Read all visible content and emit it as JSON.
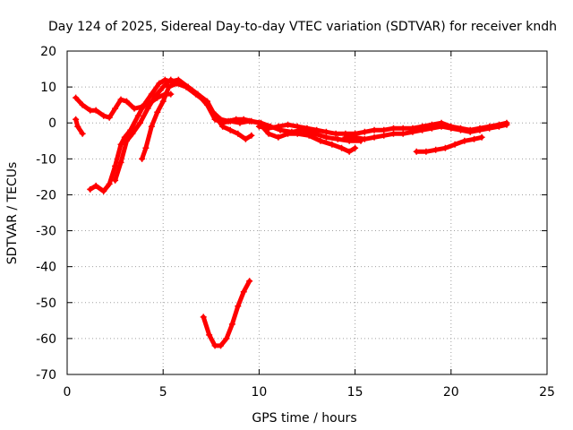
{
  "chart_data": {
    "type": "line",
    "title": "Day 124 of 2025, Sidereal Day-to-day VTEC variation (SDTVAR) for receiver kndh",
    "xlabel": "GPS time / hours",
    "ylabel": "SDTVAR / TECUs",
    "xlim": [
      0,
      25
    ],
    "ylim": [
      -70,
      20
    ],
    "xticks": [
      0,
      5,
      10,
      15,
      20,
      25
    ],
    "yticks": [
      -70,
      -60,
      -50,
      -40,
      -30,
      -20,
      -10,
      0,
      10,
      20
    ],
    "grid": true,
    "legend": "none",
    "color": "#ff0000",
    "series": [
      {
        "name": "arc-1",
        "x": [
          0.45,
          0.55,
          0.8
        ],
        "y": [
          1,
          -1,
          -3
        ]
      },
      {
        "name": "arc-2",
        "x": [
          0.45,
          0.8,
          1.2,
          1.5,
          1.9,
          2.2,
          2.5,
          2.8,
          3.1,
          3.5,
          3.9,
          4.3,
          4.7,
          5.1,
          5.4
        ],
        "y": [
          7,
          5,
          3.5,
          3.5,
          2,
          1.5,
          4,
          6.5,
          6,
          4,
          4.5,
          5.5,
          7,
          8,
          8
        ]
      },
      {
        "name": "arc-3",
        "x": [
          1.2,
          1.5,
          1.9,
          2.2,
          2.5,
          2.8,
          3.0,
          3.3,
          3.7,
          4.0,
          4.4,
          4.8,
          5.1,
          5.4,
          5.8,
          6.3,
          6.8,
          7.3,
          7.7,
          8.1,
          8.5,
          8.9,
          9.3,
          9.6
        ],
        "y": [
          -18.5,
          -17.5,
          -19,
          -17,
          -12,
          -6,
          -4,
          -2,
          2,
          5,
          8,
          11,
          12,
          11.5,
          12,
          10,
          8,
          6,
          2,
          -1,
          -2,
          -3,
          -4.5,
          -3.5
        ]
      },
      {
        "name": "arc-4",
        "x": [
          2.5,
          2.8,
          3.1,
          3.4,
          3.8,
          4.2,
          4.6,
          5.0,
          5.4,
          5.8,
          6.3,
          6.8,
          7.3,
          7.7,
          8.1,
          8.5,
          9.0,
          9.5,
          10.0,
          10.5,
          11.0,
          11.5,
          12.0,
          12.6,
          13.2,
          13.8,
          14.3,
          14.7,
          15.0
        ],
        "y": [
          -16,
          -11,
          -5,
          -3,
          0,
          4,
          7.5,
          10,
          12,
          11,
          10,
          8,
          5,
          1,
          0,
          0.5,
          0,
          0.5,
          0,
          -3,
          -4,
          -3,
          -3,
          -3.5,
          -5,
          -6,
          -7,
          -8,
          -7
        ]
      },
      {
        "name": "arc-5",
        "x": [
          3.9,
          4.1,
          4.4,
          4.7,
          5.0,
          5.3,
          5.7,
          6.2,
          6.7,
          7.2,
          7.6,
          8.0,
          8.4,
          8.8,
          9.2,
          9.6,
          10.1,
          10.6,
          11.1,
          11.7,
          12.3,
          12.9,
          13.5,
          14.1,
          14.7,
          15.3
        ],
        "y": [
          -10,
          -7,
          -1,
          3,
          6,
          10,
          11,
          10,
          8,
          6,
          3,
          1,
          0.5,
          1,
          1,
          0.5,
          0,
          -1,
          -2,
          -2.5,
          -2,
          -3,
          -4,
          -4.5,
          -5,
          -5
        ]
      },
      {
        "name": "arc-6",
        "x": [
          10.0,
          10.5,
          11.0,
          11.5,
          12.0,
          12.5,
          13.0,
          13.5,
          14.0,
          14.5,
          15.0,
          15.5,
          16.0,
          16.5,
          17.0,
          17.5,
          18.0,
          18.5,
          19.0,
          19.5,
          20.0,
          20.5,
          21.0,
          21.5,
          22.0,
          22.5,
          22.9
        ],
        "y": [
          -1,
          -1.5,
          -1,
          -0.5,
          -1,
          -1.5,
          -2,
          -2.5,
          -3,
          -3,
          -3,
          -2.5,
          -2,
          -2,
          -1.5,
          -1.5,
          -1.5,
          -1,
          -0.5,
          0,
          -1,
          -1.5,
          -2,
          -1.5,
          -1,
          -0.5,
          0
        ]
      },
      {
        "name": "arc-7",
        "x": [
          14.5,
          15.0,
          15.5,
          16.0,
          16.5,
          17.0,
          17.5,
          18.0,
          18.5,
          19.0,
          19.5,
          20.0,
          20.5,
          21.0,
          21.5,
          22.0,
          22.5,
          22.9
        ],
        "y": [
          -4,
          -4,
          -4.5,
          -4,
          -3.5,
          -3,
          -3,
          -2.5,
          -2,
          -1.5,
          -1,
          -1.5,
          -2,
          -2.5,
          -2,
          -1.5,
          -1,
          -0.5
        ]
      },
      {
        "name": "arc-8",
        "x": [
          18.2,
          18.7,
          19.2,
          19.7,
          20.2,
          20.7,
          21.2,
          21.6
        ],
        "y": [
          -8,
          -8,
          -7.5,
          -7,
          -6,
          -5,
          -4.5,
          -4
        ]
      },
      {
        "name": "arc-9",
        "x": [
          7.1,
          7.4,
          7.7,
          8.0,
          8.3,
          8.6,
          8.9,
          9.2,
          9.5
        ],
        "y": [
          -54,
          -59,
          -62,
          -62,
          -60,
          -56,
          -51,
          -47,
          -44
        ]
      }
    ]
  }
}
